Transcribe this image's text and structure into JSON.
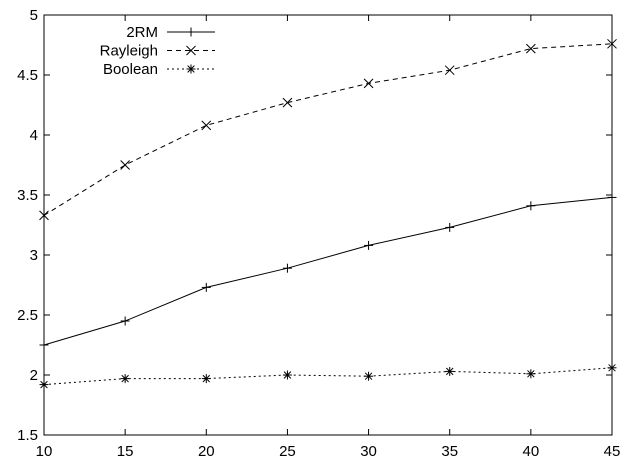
{
  "chart_data": {
    "type": "line",
    "title": "",
    "xlabel": "",
    "ylabel": "",
    "x": [
      10,
      15,
      20,
      25,
      30,
      35,
      40,
      45
    ],
    "xlim": [
      10,
      45
    ],
    "ylim": [
      1.5,
      5
    ],
    "x_ticks": [
      "10",
      "15",
      "20",
      "25",
      "30",
      "35",
      "40",
      "45"
    ],
    "y_ticks": [
      "1.5",
      "2",
      "2.5",
      "3",
      "3.5",
      "4",
      "4.5",
      "5"
    ],
    "grid": false,
    "legend_position": "top-left",
    "series": [
      {
        "name": "2RM",
        "values": [
          2.25,
          2.45,
          2.73,
          2.89,
          3.08,
          3.23,
          3.41,
          3.48
        ],
        "line_style": "solid",
        "marker": "plus",
        "color": "#000000"
      },
      {
        "name": "Rayleigh",
        "values": [
          3.33,
          3.75,
          4.08,
          4.27,
          4.43,
          4.54,
          4.72,
          4.76
        ],
        "line_style": "dashed",
        "marker": "x",
        "color": "#000000"
      },
      {
        "name": "Boolean",
        "values": [
          1.92,
          1.97,
          1.97,
          2.0,
          1.99,
          2.03,
          2.01,
          2.06
        ],
        "line_style": "dotted",
        "marker": "star",
        "color": "#000000"
      }
    ]
  }
}
